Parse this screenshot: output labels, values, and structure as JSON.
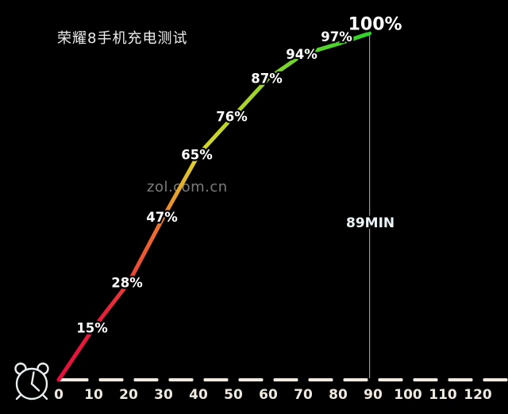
{
  "header": {
    "title": "荣耀8手机充电测试"
  },
  "watermark": {
    "text": "zol.com.cn"
  },
  "icons": {
    "alarm_clock": "⏰"
  },
  "chart_data": {
    "type": "line",
    "title": "荣耀8手机充电测试",
    "watermark": "zol.com.cn",
    "x": [
      0,
      10,
      20,
      30,
      40,
      50,
      60,
      70,
      80,
      89
    ],
    "values": [
      0,
      15,
      28,
      47,
      65,
      76,
      87,
      94,
      97,
      100
    ],
    "point_labels": [
      "",
      "15%",
      "28%",
      "47%",
      "65%",
      "76%",
      "87%",
      "94%",
      "97%",
      "100%"
    ],
    "x_ticks": [
      0,
      10,
      20,
      30,
      40,
      50,
      60,
      70,
      80,
      90,
      100,
      110,
      120
    ],
    "xlim": [
      0,
      128.6
    ],
    "ylim": [
      0,
      100
    ],
    "grid": false,
    "legend": false,
    "annotation": {
      "x": 89,
      "text": "89MIN"
    },
    "colors": {
      "background": "#000000",
      "gradient_stops": [
        "#e50f3c",
        "#e6203b",
        "#ee6d30",
        "#dcd52a",
        "#a9d42c",
        "#2ed32e"
      ],
      "axis": "#f0e9df",
      "tick_label": "#f0e9df",
      "point_label": "#ffffff",
      "point_label_halo": "#000000",
      "annotation_text": "#ecf5f7",
      "annotation_line": "#96999a",
      "title": "#ededed",
      "watermark": "#7c7c7c"
    }
  }
}
